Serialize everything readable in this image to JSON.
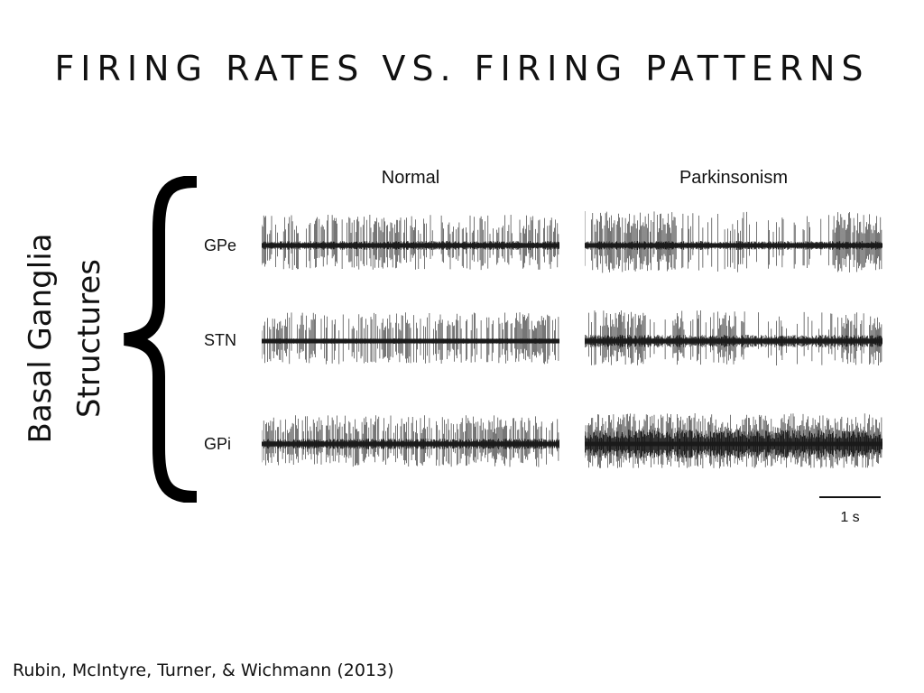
{
  "slide": {
    "title": "FIRING RATES VS. FIRING PATTERNS",
    "side_label_lines": [
      "Basal Ganglia",
      "Structures"
    ],
    "citation": "Rubin, McIntyre, Turner, & Wichmann (2013)"
  },
  "figure": {
    "columns": [
      "Normal",
      "Parkinsonism"
    ],
    "rows": [
      "GPe",
      "STN",
      "GPi"
    ],
    "scale_bar": {
      "label": "1 s",
      "duration_s": 1
    },
    "trace_color": "#1a1a1a"
  }
}
